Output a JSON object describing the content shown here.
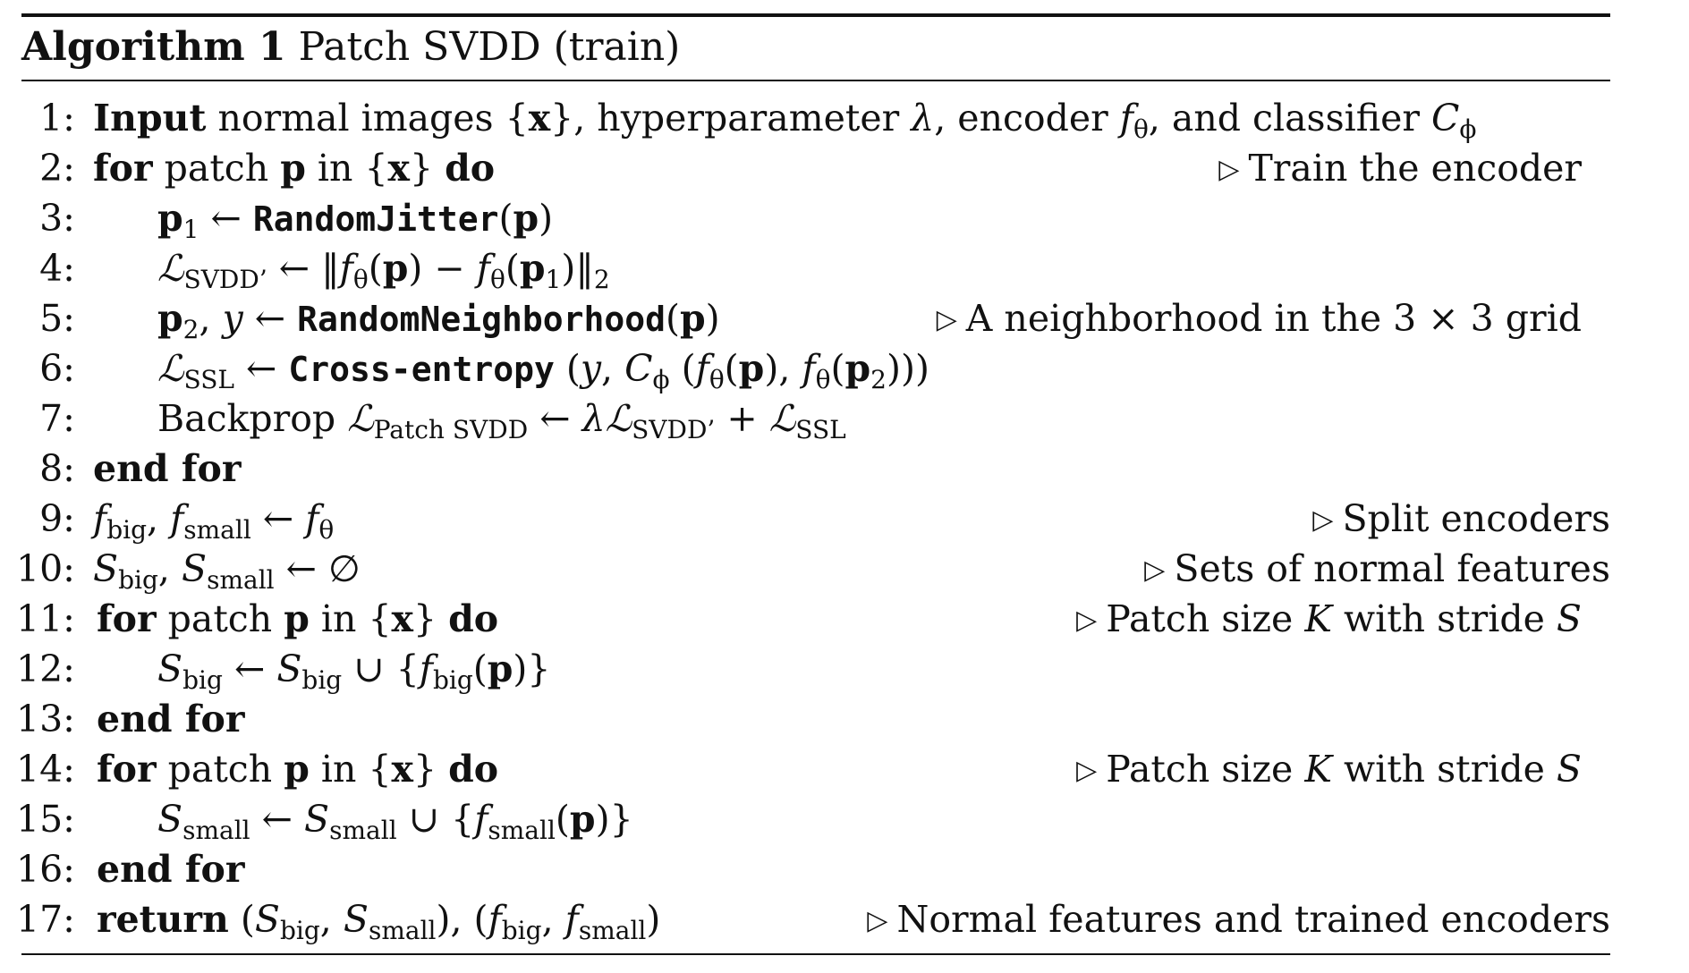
{
  "algorithm": {
    "label": "Algorithm 1",
    "name": "Patch SVDD (train)"
  },
  "lines": [
    {
      "num": "1:",
      "comment": ""
    },
    {
      "num": "2:",
      "comment": "Train the encoder"
    },
    {
      "num": "3:",
      "comment": ""
    },
    {
      "num": "4:",
      "comment": ""
    },
    {
      "num": "5:",
      "comment": "A neighborhood in the 3 × 3 grid"
    },
    {
      "num": "6:",
      "comment": ""
    },
    {
      "num": "7:",
      "comment": ""
    },
    {
      "num": "8:",
      "comment": ""
    },
    {
      "num": "9:",
      "comment": "Split encoders"
    },
    {
      "num": "10:",
      "comment": "Sets of normal features"
    },
    {
      "num": "11:",
      "comment": ""
    },
    {
      "num": "12:",
      "comment": ""
    },
    {
      "num": "13:",
      "comment": ""
    },
    {
      "num": "14:",
      "comment": ""
    },
    {
      "num": "15:",
      "comment": ""
    },
    {
      "num": "16:",
      "comment": ""
    },
    {
      "num": "17:",
      "comment": "Normal features and trained encoders"
    }
  ],
  "kw": {
    "input": "Input",
    "for": "for",
    "do": "do",
    "end_for": "end for",
    "return": "return"
  },
  "text": {
    "line1_rest_a": " normal images {",
    "line1_x": "x",
    "line1_rest_b": "}, hyperparameter ",
    "lambda": "λ",
    "line1_rest_c": ", encoder ",
    "line1_rest_d": ", and classifier ",
    "patch": " patch ",
    "p": "p",
    "in": " in {",
    "close_brace": "} ",
    "random_jitter": "RandomJitter",
    "random_neighborhood": "RandomNeighborhood",
    "cross_entropy": "Cross-entropy",
    "backprop": "Backprop ",
    "sub_svdd": "SVDD’",
    "sub_ssl": "SSL",
    "sub_patch_svdd": "Patch SVDD",
    "sub_big": "big",
    "sub_small": "small",
    "sub_theta": "θ",
    "sub_phi": "ϕ",
    "sub_1": "1",
    "sub_2": "2",
    "arrow": " ← ",
    "empty_set": "∅",
    "tri": "▷"
  }
}
